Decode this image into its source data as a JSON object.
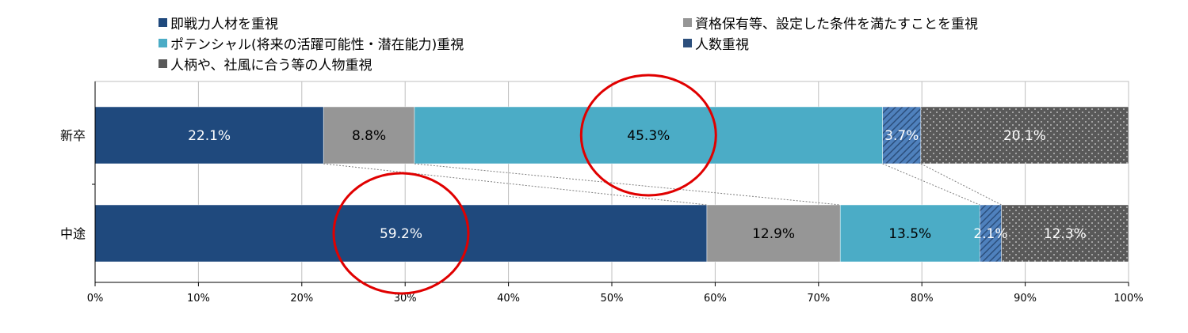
{
  "chart_data": {
    "type": "bar",
    "orientation": "horizontal",
    "stacked": true,
    "stack_normalized": true,
    "categories": [
      "新卒",
      "中途"
    ],
    "xlim": [
      0,
      100
    ],
    "xticks": [
      "0%",
      "10%",
      "20%",
      "30%",
      "40%",
      "50%",
      "60%",
      "70%",
      "80%",
      "90%",
      "100%"
    ],
    "grid": true,
    "legend_position": "top",
    "series": [
      {
        "name": "即戦力人材を重視",
        "values": [
          22.1,
          59.2
        ],
        "labels": [
          "22.1%",
          "59.2%"
        ],
        "color": "#1f497d",
        "pattern": "solid"
      },
      {
        "name": "資格保有等、設定した条件を満たすことを重視",
        "values": [
          8.8,
          12.9
        ],
        "labels": [
          "8.8%",
          "12.9%"
        ],
        "color": "#969696",
        "pattern": "solid"
      },
      {
        "name": "ポテンシャル(将来の活躍可能性・潜在能力)重視",
        "values": [
          45.3,
          13.5
        ],
        "labels": [
          "45.3%",
          "13.5%"
        ],
        "color": "#4bacc6",
        "pattern": "solid"
      },
      {
        "name": "人数重視",
        "values": [
          3.7,
          2.1
        ],
        "labels": [
          "3.7%",
          "2.1%"
        ],
        "color": "#4f81bd",
        "pattern": "hatched"
      },
      {
        "name": "人柄や、社風に合う等の人物重視",
        "values": [
          20.1,
          12.3
        ],
        "labels": [
          "20.1%",
          "12.3%"
        ],
        "color": "#595959",
        "pattern": "dotted"
      }
    ],
    "highlights": [
      "45.3%",
      "59.2%"
    ],
    "highlight_color": "#e00000"
  }
}
